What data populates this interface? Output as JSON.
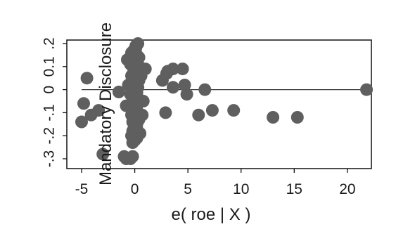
{
  "chart_data": {
    "type": "scatter",
    "title": "",
    "xlabel": "e( roe | X )",
    "ylabel": "Mandatory Disclosure",
    "xlim": [
      -6,
      23
    ],
    "ylim": [
      -0.32,
      0.24
    ],
    "x_ticks": [
      {
        "value": -5,
        "label": "-5"
      },
      {
        "value": 0,
        "label": "0"
      },
      {
        "value": 5,
        "label": "5"
      },
      {
        "value": 10,
        "label": "10"
      },
      {
        "value": 15,
        "label": "15"
      },
      {
        "value": 20,
        "label": "20"
      }
    ],
    "y_ticks": [
      {
        "value": -0.3,
        "label": "-.3"
      },
      {
        "value": -0.2,
        "label": "-.2"
      },
      {
        "value": -0.1,
        "label": "-.1"
      },
      {
        "value": 0,
        "label": "0"
      },
      {
        "value": 0.1,
        "label": "0.1"
      },
      {
        "value": 0.2,
        "label": ".2"
      }
    ],
    "grid": false,
    "fit_line": {
      "x": [
        -5,
        22
      ],
      "y": [
        0,
        0
      ]
    },
    "colors": {
      "points": "#5f5f5f",
      "line": "#333333",
      "frame": "#111111"
    },
    "series": [
      {
        "x": [
          0.3,
          0.1,
          -0.1,
          -0.3,
          0.2,
          0.4,
          -0.2,
          0.1,
          -0.4,
          0.3,
          0.0,
          -0.1,
          0.2,
          -0.3,
          0.1,
          0.4,
          -0.2,
          0.0,
          0.3,
          -0.1,
          0.2,
          -0.4,
          0.1,
          0.0,
          -0.2,
          0.3,
          0.1,
          -0.1,
          0.2,
          0.0,
          -0.3,
          0.1,
          0.4,
          -0.2,
          0.2,
          0.0,
          -0.1,
          0.3,
          0.1,
          -0.3,
          0.2,
          0.0,
          -0.2,
          0.1,
          0.3,
          -0.1,
          0.0,
          0.2,
          -0.3,
          0.1,
          0.0,
          -0.2,
          0.3,
          0.1,
          0.0,
          -0.1,
          0.2,
          0.0,
          -0.1,
          0.2,
          0.4,
          0.6,
          1.0,
          0.8,
          -0.6,
          -0.8,
          0.7,
          -0.7,
          0.5,
          -1.5,
          -4.5,
          -4.8,
          -5.0,
          -4.1,
          -3.4,
          -3.0,
          -1.0,
          -0.8,
          -0.4,
          -0.2,
          2.6,
          3.1,
          3.6,
          4.5,
          2.9,
          3.6,
          4.7,
          4.9,
          6.6,
          3.0,
          6.0,
          7.3,
          9.3,
          13.0,
          15.3,
          21.8
        ],
        "y": [
          0.2,
          0.18,
          0.17,
          0.16,
          0.15,
          0.14,
          0.13,
          0.12,
          0.11,
          0.1,
          0.09,
          0.08,
          0.07,
          0.06,
          0.05,
          0.04,
          0.03,
          0.02,
          0.01,
          0.0,
          -0.01,
          -0.02,
          -0.03,
          -0.04,
          -0.05,
          -0.06,
          -0.07,
          -0.08,
          -0.09,
          -0.1,
          -0.11,
          -0.12,
          -0.13,
          -0.14,
          -0.15,
          -0.16,
          -0.17,
          -0.18,
          -0.19,
          -0.2,
          -0.21,
          -0.22,
          -0.23,
          0.19,
          0.11,
          0.07,
          0.03,
          -0.02,
          -0.06,
          -0.1,
          -0.14,
          -0.18,
          0.09,
          -0.08,
          0.12,
          -0.12,
          0.05,
          -0.16,
          0.15,
          -0.04,
          0.1,
          0.06,
          0.09,
          -0.05,
          0.02,
          -0.07,
          -0.11,
          0.13,
          -0.19,
          -0.01,
          0.05,
          -0.06,
          -0.14,
          -0.11,
          -0.09,
          -0.28,
          -0.29,
          -0.3,
          -0.3,
          -0.29,
          0.04,
          0.08,
          0.09,
          0.09,
          -0.1,
          0.01,
          0.02,
          -0.02,
          0.0,
          0.07,
          -0.11,
          -0.09,
          -0.09,
          -0.12,
          -0.12,
          0.0
        ]
      }
    ]
  }
}
